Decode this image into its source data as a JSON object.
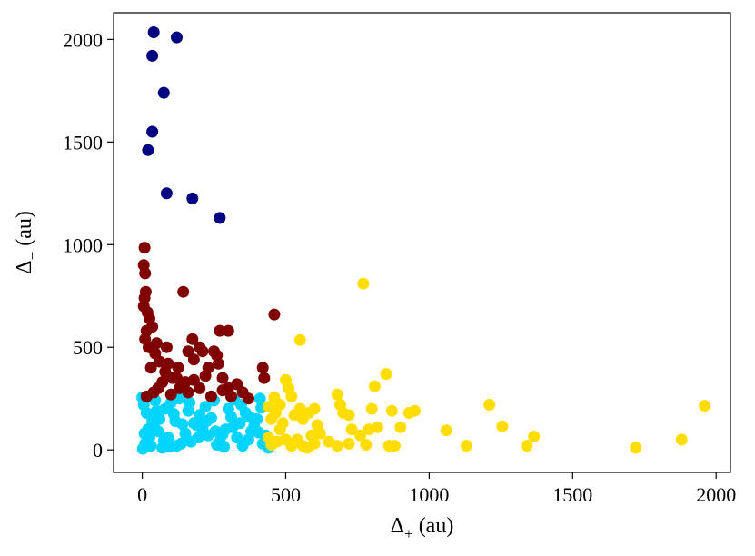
{
  "chart_data": {
    "type": "scatter",
    "title": "",
    "xlabel": {
      "base": "Δ",
      "sub": "+",
      "unit": " (au)"
    },
    "ylabel": {
      "base": "Δ",
      "sub": "−",
      "unit": " (au)"
    },
    "xlim": [
      -100,
      2050
    ],
    "ylim": [
      -110,
      2130
    ],
    "xticks": [
      0,
      500,
      1000,
      1500,
      2000
    ],
    "yticks": [
      0,
      500,
      1000,
      1500,
      2000
    ],
    "grid": false,
    "legend": "none",
    "series": [
      {
        "color": "#00d4ff",
        "points": [
          [
            2,
            5
          ],
          [
            10,
            30
          ],
          [
            25,
            60
          ],
          [
            40,
            110
          ],
          [
            60,
            150
          ],
          [
            80,
            200
          ],
          [
            100,
            230
          ],
          [
            120,
            20
          ],
          [
            150,
            80
          ],
          [
            180,
            130
          ],
          [
            200,
            170
          ],
          [
            220,
            210
          ],
          [
            250,
            240
          ],
          [
            270,
            40
          ],
          [
            290,
            100
          ],
          [
            310,
            160
          ],
          [
            330,
            60
          ],
          [
            350,
            20
          ],
          [
            380,
            90
          ],
          [
            400,
            150
          ],
          [
            420,
            30
          ],
          [
            440,
            10
          ],
          [
            5,
            220
          ],
          [
            15,
            180
          ],
          [
            35,
            140
          ],
          [
            55,
            90
          ],
          [
            75,
            45
          ],
          [
            95,
            15
          ],
          [
            130,
            250
          ],
          [
            160,
            190
          ],
          [
            190,
            120
          ],
          [
            230,
            70
          ],
          [
            260,
            25
          ],
          [
            300,
            200
          ],
          [
            340,
            130
          ],
          [
            370,
            50
          ],
          [
            410,
            250
          ],
          [
            430,
            70
          ],
          [
            20,
            100
          ],
          [
            45,
            240
          ],
          [
            70,
            10
          ],
          [
            110,
            175
          ],
          [
            140,
            125
          ],
          [
            170,
            40
          ],
          [
            210,
            105
          ],
          [
            240,
            155
          ],
          [
            280,
            75
          ],
          [
            320,
            245
          ],
          [
            360,
            180
          ],
          [
            390,
            115
          ],
          [
            415,
            205
          ],
          [
            0,
            255
          ],
          [
            8,
            80
          ],
          [
            30,
            20
          ],
          [
            50,
            190
          ],
          [
            90,
            60
          ],
          [
            115,
            140
          ],
          [
            135,
            30
          ],
          [
            165,
            230
          ],
          [
            195,
            60
          ],
          [
            225,
            140
          ],
          [
            255,
            90
          ],
          [
            285,
            15
          ],
          [
            315,
            110
          ],
          [
            345,
            220
          ],
          [
            375,
            160
          ],
          [
            405,
            85
          ],
          [
            445,
            45
          ]
        ]
      },
      {
        "color": "#800000",
        "points": [
          [
            8,
            985
          ],
          [
            5,
            900
          ],
          [
            10,
            860
          ],
          [
            12,
            770
          ],
          [
            8,
            740
          ],
          [
            143,
            770
          ],
          [
            5,
            700
          ],
          [
            18,
            670
          ],
          [
            25,
            640
          ],
          [
            35,
            600
          ],
          [
            15,
            580
          ],
          [
            10,
            540
          ],
          [
            22,
            500
          ],
          [
            45,
            470
          ],
          [
            60,
            430
          ],
          [
            30,
            400
          ],
          [
            80,
            380
          ],
          [
            105,
            350
          ],
          [
            160,
            480
          ],
          [
            180,
            440
          ],
          [
            150,
            330
          ],
          [
            200,
            300
          ],
          [
            220,
            360
          ],
          [
            250,
            480
          ],
          [
            270,
            580
          ],
          [
            300,
            580
          ],
          [
            265,
            420
          ],
          [
            280,
            350
          ],
          [
            300,
            300
          ],
          [
            330,
            320
          ],
          [
            350,
            280
          ],
          [
            420,
            400
          ],
          [
            425,
            350
          ],
          [
            460,
            660
          ],
          [
            370,
            250
          ],
          [
            240,
            260
          ],
          [
            280,
            290
          ],
          [
            130,
            300
          ],
          [
            100,
            270
          ],
          [
            70,
            330
          ],
          [
            40,
            280
          ],
          [
            15,
            260
          ],
          [
            230,
            400
          ],
          [
            180,
            340
          ],
          [
            125,
            400
          ],
          [
            175,
            540
          ],
          [
            200,
            500
          ],
          [
            210,
            480
          ],
          [
            260,
            460
          ],
          [
            85,
            500
          ],
          [
            50,
            520
          ],
          [
            120,
            350
          ],
          [
            310,
            260
          ],
          [
            160,
            280
          ],
          [
            55,
            300
          ],
          [
            90,
            420
          ]
        ]
      },
      {
        "color": "#000080",
        "points": [
          [
            40,
            2035
          ],
          [
            120,
            2010
          ],
          [
            35,
            1920
          ],
          [
            75,
            1740
          ],
          [
            35,
            1550
          ],
          [
            20,
            1460
          ],
          [
            85,
            1250
          ],
          [
            175,
            1225
          ],
          [
            270,
            1130
          ]
        ]
      },
      {
        "color": "#ffdd00",
        "points": [
          [
            770,
            810
          ],
          [
            550,
            535
          ],
          [
            460,
            255
          ],
          [
            500,
            340
          ],
          [
            510,
            300
          ],
          [
            520,
            260
          ],
          [
            480,
            220
          ],
          [
            440,
            210
          ],
          [
            450,
            150
          ],
          [
            465,
            180
          ],
          [
            480,
            100
          ],
          [
            500,
            50
          ],
          [
            520,
            20
          ],
          [
            550,
            200
          ],
          [
            560,
            150
          ],
          [
            580,
            180
          ],
          [
            600,
            200
          ],
          [
            610,
            120
          ],
          [
            590,
            70
          ],
          [
            600,
            30
          ],
          [
            560,
            20
          ],
          [
            540,
            50
          ],
          [
            680,
            270
          ],
          [
            690,
            220
          ],
          [
            700,
            180
          ],
          [
            720,
            170
          ],
          [
            730,
            100
          ],
          [
            720,
            30
          ],
          [
            680,
            20
          ],
          [
            790,
            100
          ],
          [
            800,
            200
          ],
          [
            810,
            310
          ],
          [
            820,
            110
          ],
          [
            850,
            370
          ],
          [
            860,
            20
          ],
          [
            870,
            190
          ],
          [
            880,
            20
          ],
          [
            900,
            110
          ],
          [
            930,
            180
          ],
          [
            950,
            190
          ],
          [
            1060,
            95
          ],
          [
            1130,
            20
          ],
          [
            1210,
            220
          ],
          [
            1255,
            115
          ],
          [
            1340,
            20
          ],
          [
            1365,
            65
          ],
          [
            1720,
            10
          ],
          [
            1880,
            50
          ],
          [
            1960,
            215
          ],
          [
            440,
            60
          ],
          [
            450,
            25
          ],
          [
            470,
            40
          ],
          [
            490,
            130
          ],
          [
            530,
            170
          ],
          [
            575,
            10
          ],
          [
            620,
            80
          ],
          [
            650,
            40
          ],
          [
            760,
            70
          ],
          [
            780,
            25
          ]
        ]
      }
    ]
  }
}
